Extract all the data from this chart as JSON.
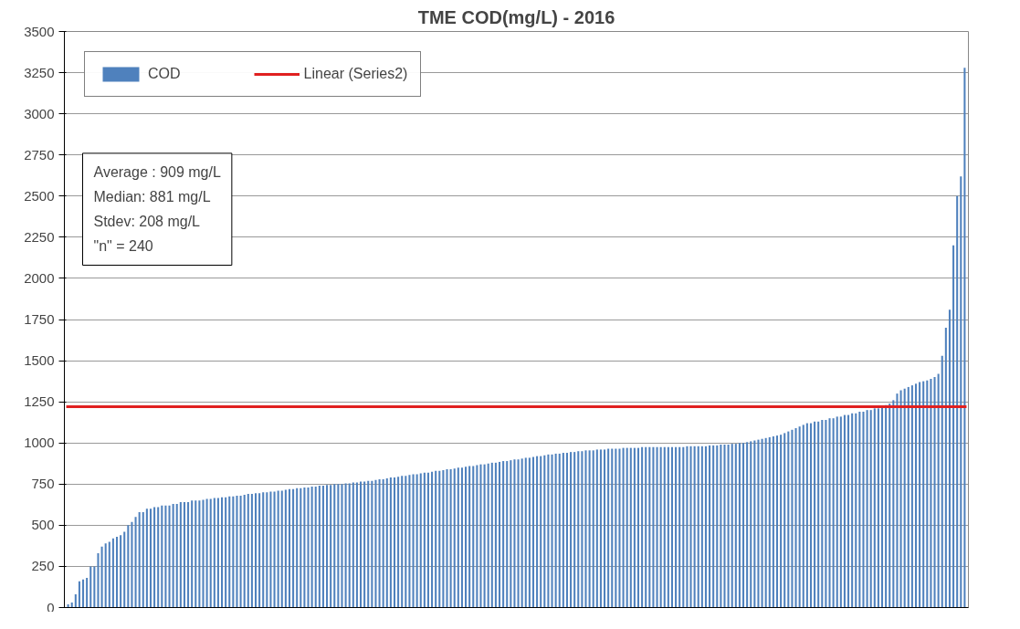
{
  "chart_data": {
    "type": "bar",
    "title": "TME COD(mg/L) - 2016",
    "categories": [
      null,
      null,
      null,
      null,
      null,
      null,
      null,
      null,
      null,
      null,
      null,
      null,
      null,
      null,
      null,
      null,
      null,
      null,
      null,
      null,
      null,
      null,
      null,
      null,
      null,
      null,
      null,
      null,
      null,
      null,
      null,
      null,
      null,
      null,
      null,
      null,
      null,
      null,
      null,
      null,
      null,
      null,
      null,
      null,
      null,
      null,
      null,
      null,
      null,
      null,
      null,
      null,
      null,
      null,
      null,
      null,
      null,
      null,
      null,
      null,
      null,
      null,
      null,
      null,
      null,
      null,
      null,
      null,
      null,
      null,
      null,
      null,
      null,
      null,
      null,
      null,
      null,
      null,
      null,
      null,
      null,
      null,
      null,
      null,
      null,
      null,
      null,
      null,
      null,
      null,
      null,
      null,
      null,
      null,
      null,
      null,
      null,
      null,
      null,
      null,
      null,
      null,
      null,
      null,
      null,
      null,
      null,
      null,
      null,
      null,
      null,
      null,
      null,
      null,
      null,
      null,
      null,
      null,
      null,
      null,
      null,
      null,
      null,
      null,
      null,
      null,
      null,
      null,
      null,
      null,
      null,
      null,
      null,
      null,
      null,
      null,
      null,
      null,
      null,
      null,
      null,
      null,
      null,
      null,
      null,
      null,
      null,
      null,
      null,
      null,
      null,
      null,
      null,
      null,
      null,
      null,
      null,
      null,
      null,
      null,
      null,
      null,
      null,
      null,
      null,
      null,
      null,
      null,
      null,
      null,
      null,
      null,
      null,
      null,
      null,
      null,
      null,
      null,
      null,
      null,
      null,
      null,
      null,
      null,
      null,
      null,
      null,
      null,
      null,
      null,
      null,
      null,
      null,
      null,
      null,
      null,
      null,
      null,
      null,
      null,
      null,
      null,
      null,
      null,
      null,
      null,
      null,
      null,
      null,
      null,
      null,
      null,
      null,
      null,
      null,
      null,
      null,
      null,
      null,
      null,
      null,
      null,
      null,
      null,
      null,
      null,
      null,
      null,
      null,
      null,
      null,
      null,
      null,
      null,
      null,
      null,
      null,
      null,
      null,
      null
    ],
    "series": [
      {
        "name": "COD",
        "color": "#4f81bd",
        "values": [
          20,
          30,
          80,
          160,
          170,
          180,
          250,
          250,
          330,
          370,
          390,
          400,
          420,
          430,
          440,
          460,
          500,
          520,
          550,
          580,
          580,
          600,
          600,
          610,
          610,
          620,
          620,
          620,
          630,
          630,
          640,
          640,
          640,
          650,
          650,
          650,
          655,
          660,
          660,
          665,
          665,
          670,
          670,
          675,
          675,
          680,
          680,
          685,
          690,
          690,
          695,
          695,
          700,
          700,
          705,
          705,
          710,
          710,
          715,
          720,
          720,
          725,
          725,
          730,
          730,
          735,
          735,
          740,
          740,
          745,
          745,
          750,
          750,
          750,
          755,
          755,
          760,
          760,
          765,
          765,
          770,
          770,
          775,
          780,
          780,
          785,
          790,
          790,
          795,
          800,
          800,
          805,
          810,
          810,
          815,
          820,
          820,
          825,
          830,
          830,
          835,
          840,
          840,
          845,
          850,
          850,
          855,
          860,
          860,
          865,
          870,
          870,
          875,
          880,
          880,
          885,
          890,
          890,
          895,
          900,
          900,
          905,
          910,
          910,
          915,
          920,
          920,
          925,
          930,
          930,
          935,
          935,
          940,
          940,
          945,
          945,
          950,
          950,
          955,
          955,
          955,
          960,
          960,
          960,
          965,
          965,
          965,
          965,
          970,
          970,
          970,
          970,
          970,
          975,
          975,
          975,
          975,
          975,
          975,
          975,
          975,
          975,
          975,
          975,
          975,
          980,
          980,
          980,
          980,
          980,
          980,
          985,
          985,
          985,
          990,
          990,
          990,
          995,
          995,
          1000,
          1000,
          1005,
          1010,
          1015,
          1020,
          1025,
          1030,
          1035,
          1040,
          1045,
          1050,
          1060,
          1070,
          1080,
          1090,
          1100,
          1110,
          1120,
          1120,
          1130,
          1130,
          1140,
          1140,
          1150,
          1150,
          1160,
          1160,
          1170,
          1170,
          1180,
          1180,
          1190,
          1190,
          1200,
          1200,
          1210,
          1210,
          1220,
          1230,
          1240,
          1260,
          1300,
          1320,
          1330,
          1340,
          1350,
          1360,
          1370,
          1375,
          1380,
          1390,
          1400,
          1420,
          1530,
          1700,
          1810,
          2200,
          2500,
          2620,
          3280
        ]
      }
    ],
    "ref_lines": [
      {
        "axis": "y",
        "value": 1220,
        "label": "Linear (Series2)",
        "color": "#e02020",
        "line_style": "solid"
      }
    ],
    "annotations": [
      "Average : 909 mg/L",
      "Median: 881 mg/L",
      "Stdev: 208 mg/L",
      "\"n\" = 240"
    ],
    "ylim": [
      0,
      3500
    ],
    "yticks": [
      0,
      250,
      500,
      750,
      1000,
      1250,
      1500,
      1750,
      2000,
      2250,
      2500,
      2750,
      3000,
      3250,
      3500
    ],
    "grid": "y",
    "legend": "top left",
    "tick_labels": "y"
  }
}
